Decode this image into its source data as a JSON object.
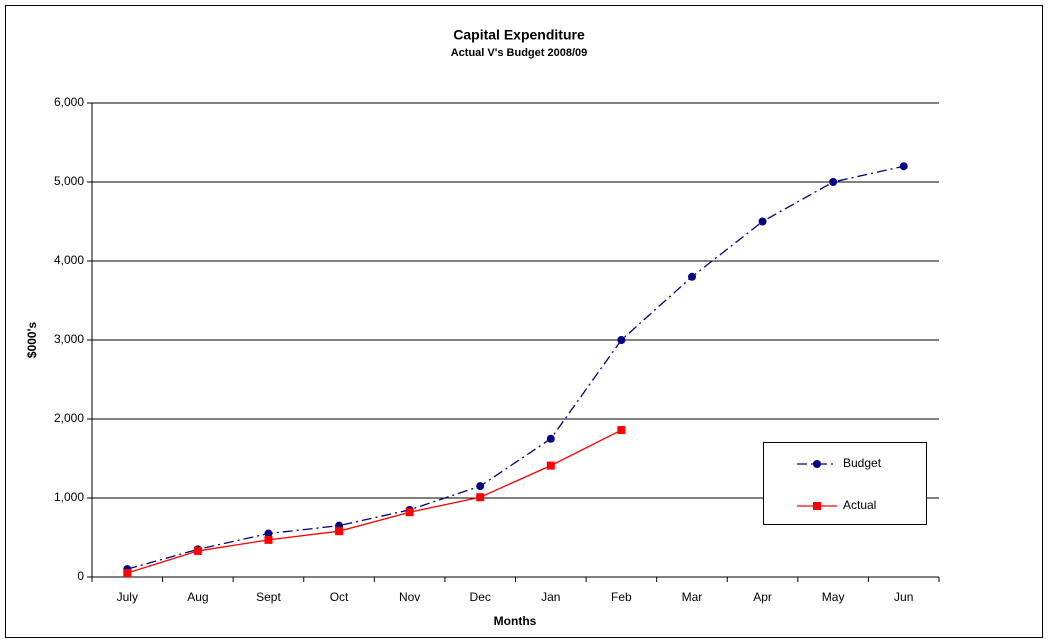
{
  "chart_data": {
    "type": "line",
    "title": "Capital Expenditure",
    "subtitle": "Actual V's Budget 2008/09",
    "x_label": "Months",
    "y_label": "$000's",
    "categories": [
      "July",
      "Aug",
      "Sept",
      "Oct",
      "Nov",
      "Dec",
      "Jan",
      "Feb",
      "Mar",
      "Apr",
      "May",
      "Jun"
    ],
    "series": [
      {
        "name": "Budget",
        "color": "#000080",
        "marker": "circle",
        "line_style": "dashdot",
        "values": [
          100,
          350,
          550,
          650,
          850,
          1150,
          1750,
          3000,
          3800,
          4500,
          5000,
          5200
        ]
      },
      {
        "name": "Actual",
        "color": "#ff0000",
        "marker": "square",
        "line_style": "solid",
        "values": [
          50,
          330,
          470,
          580,
          820,
          1010,
          1410,
          1860,
          null,
          null,
          null,
          null
        ]
      }
    ],
    "ylim": [
      0,
      6000
    ],
    "yticks": [
      0,
      {
        "value": 1000,
        "label": "1,000"
      },
      {
        "value": 2000,
        "label": "2,000"
      },
      {
        "value": 3000,
        "label": "3,000"
      },
      {
        "value": 4000,
        "label": "4,000"
      },
      {
        "value": 5000,
        "label": "5,000"
      },
      {
        "value": 6000,
        "label": "6,000"
      }
    ],
    "grid": true,
    "legend": "right"
  }
}
